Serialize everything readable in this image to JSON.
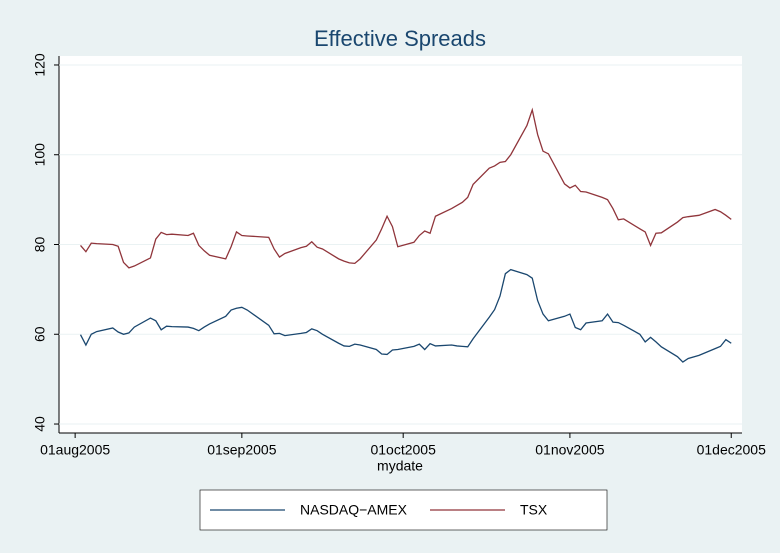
{
  "chart_data": {
    "type": "line",
    "title": "Effective Spreads",
    "xlabel": "mydate",
    "x": [
      "2005-08-02",
      "2005-08-03",
      "2005-08-04",
      "2005-08-05",
      "2005-08-08",
      "2005-08-09",
      "2005-08-10",
      "2005-08-11",
      "2005-08-12",
      "2005-08-15",
      "2005-08-16",
      "2005-08-17",
      "2005-08-18",
      "2005-08-19",
      "2005-08-22",
      "2005-08-23",
      "2005-08-24",
      "2005-08-25",
      "2005-08-26",
      "2005-08-29",
      "2005-08-30",
      "2005-08-31",
      "2005-09-01",
      "2005-09-02",
      "2005-09-06",
      "2005-09-07",
      "2005-09-08",
      "2005-09-09",
      "2005-09-12",
      "2005-09-13",
      "2005-09-14",
      "2005-09-15",
      "2005-09-16",
      "2005-09-19",
      "2005-09-20",
      "2005-09-21",
      "2005-09-22",
      "2005-09-23",
      "2005-09-26",
      "2005-09-27",
      "2005-09-28",
      "2005-09-29",
      "2005-09-30",
      "2005-10-03",
      "2005-10-04",
      "2005-10-05",
      "2005-10-06",
      "2005-10-07",
      "2005-10-10",
      "2005-10-11",
      "2005-10-12",
      "2005-10-13",
      "2005-10-14",
      "2005-10-17",
      "2005-10-18",
      "2005-10-19",
      "2005-10-20",
      "2005-10-21",
      "2005-10-24",
      "2005-10-25",
      "2005-10-26",
      "2005-10-27",
      "2005-10-28",
      "2005-10-31",
      "2005-11-01",
      "2005-11-02",
      "2005-11-03",
      "2005-11-04",
      "2005-11-07",
      "2005-11-08",
      "2005-11-09",
      "2005-11-10",
      "2005-11-11",
      "2005-11-14",
      "2005-11-15",
      "2005-11-16",
      "2005-11-17",
      "2005-11-18",
      "2005-11-21",
      "2005-11-22",
      "2005-11-23",
      "2005-11-25",
      "2005-11-28",
      "2005-11-29",
      "2005-11-30",
      "2005-12-01"
    ],
    "series": [
      {
        "name": "NASDAQ−AMEX",
        "color": "#1a476f",
        "values": [
          59.9,
          57.6,
          60.0,
          60.6,
          61.4,
          60.5,
          60.0,
          60.3,
          61.6,
          63.6,
          63.0,
          61.0,
          61.8,
          61.7,
          61.6,
          61.3,
          60.8,
          61.6,
          62.3,
          64.0,
          65.4,
          65.8,
          66.0,
          65.4,
          62.0,
          60.1,
          60.2,
          59.7,
          60.2,
          60.4,
          61.2,
          60.8,
          60.0,
          58.0,
          57.4,
          57.3,
          57.8,
          57.6,
          56.6,
          55.6,
          55.5,
          56.5,
          56.6,
          57.3,
          57.8,
          56.6,
          57.9,
          57.4,
          57.6,
          57.4,
          57.3,
          57.2,
          59.0,
          63.8,
          65.5,
          68.5,
          73.5,
          74.4,
          73.3,
          72.5,
          67.5,
          64.5,
          63.0,
          64.0,
          64.5,
          61.5,
          61.0,
          62.5,
          63.0,
          64.5,
          62.7,
          62.6,
          62.0,
          60.0,
          58.3,
          59.3,
          58.3,
          57.2,
          55.0,
          53.8,
          54.6,
          55.3,
          56.8,
          57.3,
          58.8,
          58.0
        ]
      },
      {
        "name": "TSX",
        "color": "#90353b",
        "values": [
          79.8,
          78.4,
          80.3,
          80.2,
          80.0,
          79.6,
          76.0,
          74.8,
          75.2,
          77.0,
          81.2,
          82.7,
          82.2,
          82.3,
          82.0,
          82.5,
          79.8,
          78.6,
          77.6,
          76.8,
          79.5,
          82.8,
          82.0,
          81.9,
          81.6,
          79.0,
          77.2,
          78.0,
          79.3,
          79.6,
          80.6,
          79.4,
          79.0,
          76.8,
          76.3,
          75.9,
          75.8,
          76.8,
          81.0,
          83.5,
          86.3,
          84.0,
          79.5,
          80.5,
          82.0,
          83.0,
          82.5,
          86.3,
          88.0,
          88.7,
          89.4,
          90.5,
          93.4,
          97.0,
          97.5,
          98.3,
          98.5,
          100.0,
          106.5,
          110.0,
          104.5,
          100.8,
          100.2,
          93.5,
          92.6,
          93.2,
          91.8,
          91.7,
          90.5,
          90.0,
          88.0,
          85.5,
          85.7,
          83.5,
          82.8,
          79.8,
          82.5,
          82.6,
          85.0,
          86.0,
          86.2,
          86.5,
          87.8,
          87.3,
          86.5,
          85.6
        ]
      }
    ],
    "xlim": [
      "2005-07-29",
      "2005-12-03"
    ],
    "xticks": [
      {
        "value": "2005-08-01",
        "label": "01aug2005"
      },
      {
        "value": "2005-09-01",
        "label": "01sep2005"
      },
      {
        "value": "2005-10-01",
        "label": "01oct2005"
      },
      {
        "value": "2005-11-01",
        "label": "01nov2005"
      },
      {
        "value": "2005-12-01",
        "label": "01dec2005"
      }
    ],
    "ylim": [
      38,
      122
    ],
    "yticks": [
      40,
      60,
      80,
      100,
      120
    ],
    "grid": true,
    "legend": "bottom"
  }
}
